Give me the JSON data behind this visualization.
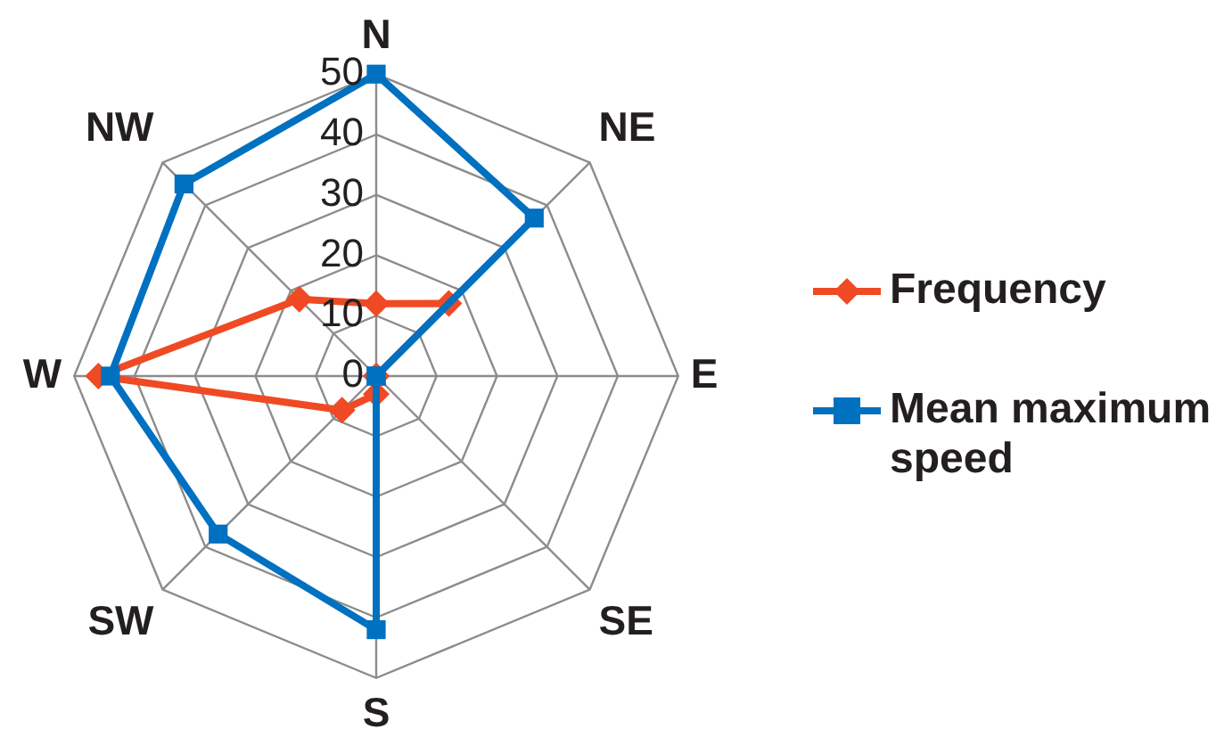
{
  "chart_data": {
    "type": "radar",
    "categories": [
      "N",
      "NE",
      "E",
      "SE",
      "S",
      "SW",
      "W",
      "NW"
    ],
    "series": [
      {
        "name": "Frequency",
        "color": "#ef4a24",
        "marker": "diamond",
        "values": [
          12,
          17,
          0,
          0,
          3,
          8,
          46,
          18
        ]
      },
      {
        "name": "Mean maximum speed",
        "color": "#0070c0",
        "marker": "square",
        "values": [
          50,
          37,
          0,
          0,
          42,
          37,
          44,
          45
        ]
      }
    ],
    "ylim": [
      0,
      50
    ],
    "yticks": [
      0,
      10,
      20,
      30,
      40,
      50
    ],
    "grid": true,
    "legend": "right",
    "line_style": "solid"
  }
}
